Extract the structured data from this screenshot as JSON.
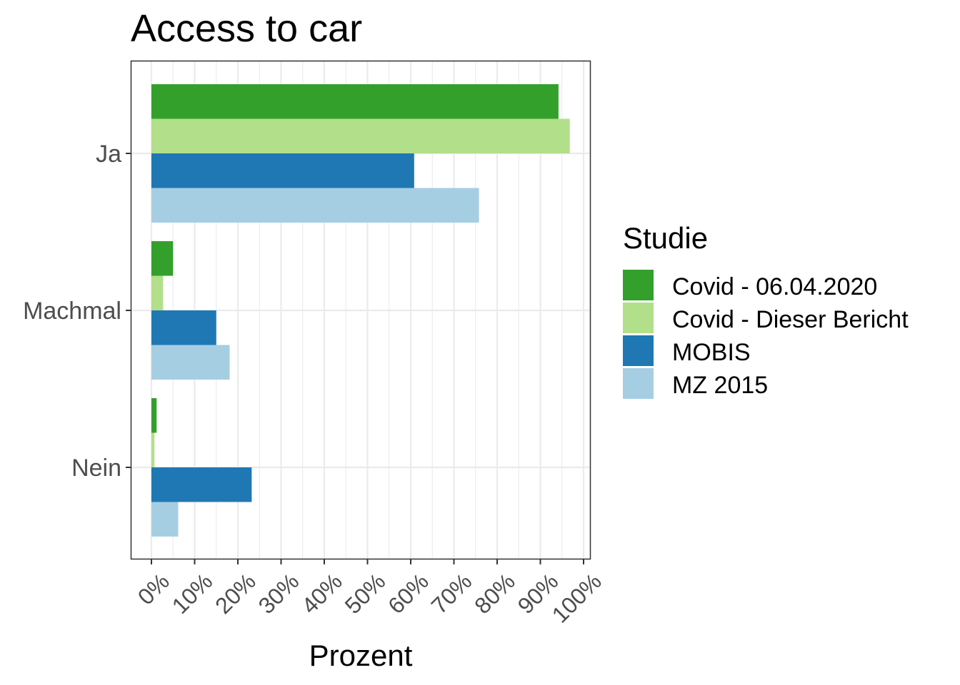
{
  "chart_data": {
    "type": "bar",
    "orientation": "horizontal",
    "title": "Access to car",
    "xlabel": "Prozent",
    "ylabel": "",
    "xlim": [
      0,
      100
    ],
    "x_ticks": [
      "0%",
      "10%",
      "20%",
      "30%",
      "40%",
      "50%",
      "60%",
      "70%",
      "80%",
      "90%",
      "100%"
    ],
    "categories": [
      "Ja",
      "Machmal",
      "Nein"
    ],
    "series": [
      {
        "name": "Covid - 06.04.2020",
        "color": "#33a02c",
        "values": [
          94.2,
          5.0,
          1.2
        ]
      },
      {
        "name": "Covid - Dieser Bericht",
        "color": "#b2df8a",
        "values": [
          96.8,
          2.7,
          0.7
        ]
      },
      {
        "name": "MOBIS",
        "color": "#1f78b4",
        "values": [
          60.8,
          15.0,
          23.2
        ]
      },
      {
        "name": "MZ 2015",
        "color": "#a6cee3",
        "values": [
          75.8,
          18.1,
          6.2
        ]
      }
    ],
    "legend": {
      "title": "Studie",
      "position": "right"
    },
    "grid": true
  }
}
